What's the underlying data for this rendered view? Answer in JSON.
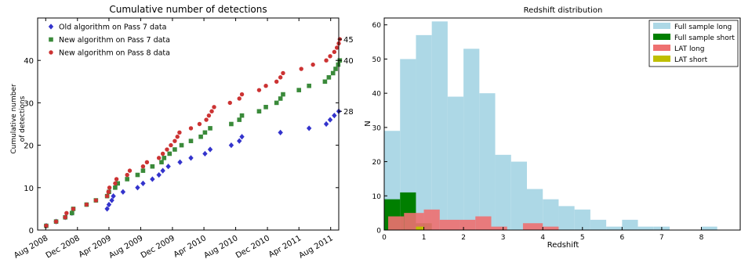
{
  "chart_data": [
    {
      "type": "scatter",
      "title": "Cumulative number of detections",
      "xlabel": "",
      "ylabel": "Cumulative number\nof detections",
      "x_tick_labels": [
        "Aug 2008",
        "Dec 2008",
        "Apr 2009",
        "Aug 2009",
        "Dec 2009",
        "Apr 2010",
        "Aug 2010",
        "Dec 2010",
        "Apr 2011",
        "Aug 2011"
      ],
      "x_range": [
        "2008-07",
        "2011-09"
      ],
      "ylim": [
        0,
        50
      ],
      "y_ticks": [
        0,
        10,
        20,
        30,
        40
      ],
      "right_axis_labels": [
        {
          "label": "45",
          "value": 45
        },
        {
          "label": "40",
          "value": 40
        },
        {
          "label": "28",
          "value": 28
        }
      ],
      "legend_position": "top-left",
      "series": [
        {
          "name": "Old algorithm on Pass 7 data",
          "marker": "diamond",
          "color": "#3333cc",
          "points": [
            [
              "2008-08-03",
              1
            ],
            [
              "2008-09-10",
              2
            ],
            [
              "2008-10-15",
              3
            ],
            [
              "2008-11-10",
              4
            ],
            [
              "2009-03-25",
              5
            ],
            [
              "2009-04-01",
              6
            ],
            [
              "2009-04-12",
              7
            ],
            [
              "2009-04-18",
              8
            ],
            [
              "2009-05-25",
              9
            ],
            [
              "2009-07-20",
              10
            ],
            [
              "2009-08-10",
              11
            ],
            [
              "2009-09-15",
              12
            ],
            [
              "2009-10-10",
              13
            ],
            [
              "2009-10-25",
              14
            ],
            [
              "2009-11-15",
              15
            ],
            [
              "2009-12-30",
              16
            ],
            [
              "2010-02-10",
              17
            ],
            [
              "2010-04-05",
              18
            ],
            [
              "2010-04-25",
              19
            ],
            [
              "2010-07-15",
              20
            ],
            [
              "2010-08-15",
              21
            ],
            [
              "2010-08-25",
              22
            ],
            [
              "2011-01-20",
              23
            ],
            [
              "2011-05-10",
              24
            ],
            [
              "2011-07-15",
              25
            ],
            [
              "2011-07-30",
              26
            ],
            [
              "2011-08-15",
              27
            ],
            [
              "2011-09-01",
              28
            ]
          ]
        },
        {
          "name": "New algorithm on Pass 7 data",
          "marker": "square",
          "color": "#3a8a3a",
          "points": [
            [
              "2008-08-03",
              1
            ],
            [
              "2008-09-10",
              2
            ],
            [
              "2008-10-15",
              3
            ],
            [
              "2008-11-10",
              4
            ],
            [
              "2008-11-15",
              5
            ],
            [
              "2009-01-05",
              6
            ],
            [
              "2009-02-10",
              7
            ],
            [
              "2009-03-25",
              8
            ],
            [
              "2009-04-01",
              9
            ],
            [
              "2009-04-25",
              10
            ],
            [
              "2009-05-05",
              11
            ],
            [
              "2009-06-10",
              12
            ],
            [
              "2009-07-20",
              13
            ],
            [
              "2009-08-10",
              14
            ],
            [
              "2009-09-15",
              15
            ],
            [
              "2009-10-20",
              16
            ],
            [
              "2009-10-30",
              17
            ],
            [
              "2009-11-20",
              18
            ],
            [
              "2009-12-10",
              19
            ],
            [
              "2010-01-05",
              20
            ],
            [
              "2010-02-10",
              21
            ],
            [
              "2010-03-20",
              22
            ],
            [
              "2010-04-05",
              23
            ],
            [
              "2010-04-25",
              24
            ],
            [
              "2010-07-15",
              25
            ],
            [
              "2010-08-15",
              26
            ],
            [
              "2010-08-25",
              27
            ],
            [
              "2010-10-30",
              28
            ],
            [
              "2010-11-25",
              29
            ],
            [
              "2011-01-05",
              30
            ],
            [
              "2011-01-20",
              31
            ],
            [
              "2011-01-30",
              32
            ],
            [
              "2011-04-01",
              33
            ],
            [
              "2011-05-10",
              34
            ],
            [
              "2011-07-10",
              35
            ],
            [
              "2011-07-25",
              36
            ],
            [
              "2011-08-10",
              37
            ],
            [
              "2011-08-20",
              38
            ],
            [
              "2011-08-30",
              39
            ],
            [
              "2011-09-05",
              40
            ]
          ]
        },
        {
          "name": "New algorithm on Pass 8 data",
          "marker": "circle",
          "color": "#cc3333",
          "points": [
            [
              "2008-08-03",
              1
            ],
            [
              "2008-09-10",
              2
            ],
            [
              "2008-10-15",
              3
            ],
            [
              "2008-10-20",
              4
            ],
            [
              "2008-11-15",
              5
            ],
            [
              "2009-01-05",
              6
            ],
            [
              "2009-02-10",
              7
            ],
            [
              "2009-03-25",
              8
            ],
            [
              "2009-03-30",
              9
            ],
            [
              "2009-04-03",
              10
            ],
            [
              "2009-04-25",
              11
            ],
            [
              "2009-04-30",
              12
            ],
            [
              "2009-06-10",
              13
            ],
            [
              "2009-06-20",
              14
            ],
            [
              "2009-08-10",
              15
            ],
            [
              "2009-08-25",
              16
            ],
            [
              "2009-10-10",
              17
            ],
            [
              "2009-10-25",
              18
            ],
            [
              "2009-11-10",
              19
            ],
            [
              "2009-11-25",
              20
            ],
            [
              "2009-12-10",
              21
            ],
            [
              "2009-12-20",
              22
            ],
            [
              "2009-12-28",
              23
            ],
            [
              "2010-02-10",
              24
            ],
            [
              "2010-03-15",
              25
            ],
            [
              "2010-04-10",
              26
            ],
            [
              "2010-04-20",
              27
            ],
            [
              "2010-05-01",
              28
            ],
            [
              "2010-05-10",
              29
            ],
            [
              "2010-07-10",
              30
            ],
            [
              "2010-08-15",
              31
            ],
            [
              "2010-08-25",
              32
            ],
            [
              "2010-10-30",
              33
            ],
            [
              "2010-11-25",
              34
            ],
            [
              "2011-01-05",
              35
            ],
            [
              "2011-01-20",
              36
            ],
            [
              "2011-01-30",
              37
            ],
            [
              "2011-04-10",
              38
            ],
            [
              "2011-05-25",
              39
            ],
            [
              "2011-07-15",
              40
            ],
            [
              "2011-07-30",
              41
            ],
            [
              "2011-08-15",
              42
            ],
            [
              "2011-08-25",
              43
            ],
            [
              "2011-09-01",
              44
            ],
            [
              "2011-09-05",
              45
            ]
          ]
        }
      ]
    },
    {
      "type": "histogram",
      "title": "Redshift distribution",
      "xlabel": "Redshift",
      "ylabel": "N",
      "xlim": [
        0,
        9
      ],
      "ylim": [
        0,
        62
      ],
      "x_ticks": [
        0,
        1,
        2,
        3,
        4,
        5,
        6,
        7,
        8
      ],
      "y_ticks": [
        0,
        10,
        20,
        30,
        40,
        50,
        60
      ],
      "legend_position": "top-right",
      "series": [
        {
          "name": "Full sample long",
          "color": "#add8e6",
          "bins": [
            [
              0,
              0.4,
              29
            ],
            [
              0.4,
              0.8,
              50
            ],
            [
              0.8,
              1.2,
              57
            ],
            [
              1.2,
              1.6,
              61
            ],
            [
              1.6,
              2.0,
              39
            ],
            [
              2.0,
              2.4,
              53
            ],
            [
              2.4,
              2.8,
              40
            ],
            [
              2.8,
              3.2,
              22
            ],
            [
              3.2,
              3.6,
              20
            ],
            [
              3.6,
              4.0,
              12
            ],
            [
              4.0,
              4.4,
              9
            ],
            [
              4.4,
              4.8,
              7
            ],
            [
              4.8,
              5.2,
              6
            ],
            [
              5.2,
              5.6,
              3
            ],
            [
              5.6,
              6.0,
              1
            ],
            [
              6.0,
              6.4,
              3
            ],
            [
              6.4,
              6.8,
              1
            ],
            [
              6.8,
              7.2,
              1
            ],
            [
              7.2,
              7.6,
              0
            ],
            [
              7.6,
              8.0,
              0
            ],
            [
              8.0,
              8.4,
              1
            ]
          ]
        },
        {
          "name": "Full sample short",
          "color": "#007f00",
          "bins": [
            [
              0,
              0.4,
              9
            ],
            [
              0.4,
              0.8,
              11
            ],
            [
              0.8,
              1.2,
              2
            ]
          ]
        },
        {
          "name": "LAT long",
          "color": "#ee7070",
          "alpha": 0.9,
          "bins": [
            [
              0.1,
              0.5,
              4
            ],
            [
              0.5,
              1.0,
              5
            ],
            [
              1.0,
              1.4,
              6
            ],
            [
              1.4,
              1.9,
              3
            ],
            [
              1.9,
              2.3,
              3
            ],
            [
              2.3,
              2.7,
              4
            ],
            [
              2.7,
              3.1,
              1
            ],
            [
              3.1,
              3.5,
              0
            ],
            [
              3.5,
              4.0,
              2
            ],
            [
              4.0,
              4.4,
              1
            ]
          ]
        },
        {
          "name": "LAT short",
          "color": "#bfbf00",
          "bins": [
            [
              0.8,
              1.0,
              1
            ]
          ]
        }
      ]
    }
  ]
}
